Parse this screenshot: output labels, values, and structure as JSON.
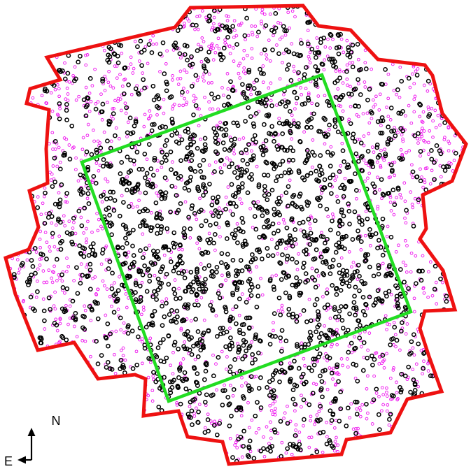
{
  "colors": {
    "outer_boundary": "#ee1111",
    "inner_boundary": "#22dd22",
    "bright_sources": "#000000",
    "faint_sources": "#ee11ee",
    "background": "#ffffff"
  },
  "compass": {
    "north_label": "N",
    "east_label": "E",
    "arrow_icon": "compass-arrows-icon"
  },
  "sources": {
    "bright_marker": "black-ring",
    "faint_marker": "magenta-ring"
  }
}
